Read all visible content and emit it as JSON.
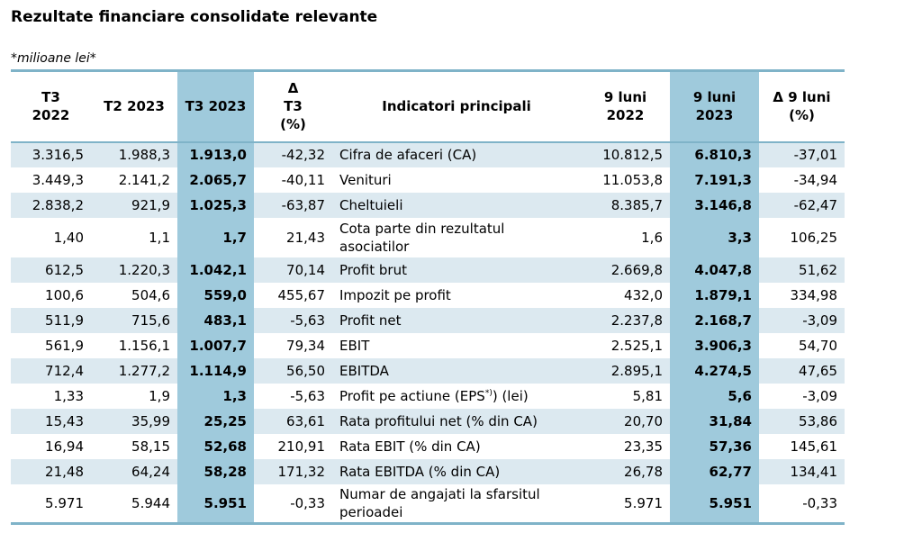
{
  "title": "Rezultate financiare consolidate relevante",
  "unit_note": "*milioane lei*",
  "table": {
    "headers": {
      "t3_2022": [
        "T3",
        "2022"
      ],
      "t2_2023": "T2 2023",
      "t3_2023": "T3 2023",
      "delta_t3": [
        "Δ",
        "T3",
        "(%)"
      ],
      "indicator": "Indicatori principali",
      "nine_2022": [
        "9 luni",
        "2022"
      ],
      "nine_2023": [
        "9 luni",
        "2023"
      ],
      "delta_nine": [
        "Δ 9 luni",
        "(%)"
      ]
    },
    "colors": {
      "header_rule": "#7fb3c8",
      "row_shade": "#dce9f0",
      "highlight_column": "#9fcadc"
    },
    "rows": [
      {
        "t3_2022": "3.316,5",
        "t2_2023": "1.988,3",
        "t3_2023": "1.913,0",
        "delta_t3": "-42,32",
        "indicator": "Cifra de afaceri (CA)",
        "nine_2022": "10.812,5",
        "nine_2023": "6.810,3",
        "delta_nine": "-37,01"
      },
      {
        "t3_2022": "3.449,3",
        "t2_2023": "2.141,2",
        "t3_2023": "2.065,7",
        "delta_t3": "-40,11",
        "indicator": "Venituri",
        "nine_2022": "11.053,8",
        "nine_2023": "7.191,3",
        "delta_nine": "-34,94"
      },
      {
        "t3_2022": "2.838,2",
        "t2_2023": "921,9",
        "t3_2023": "1.025,3",
        "delta_t3": "-63,87",
        "indicator": "Cheltuieli",
        "nine_2022": "8.385,7",
        "nine_2023": "3.146,8",
        "delta_nine": "-62,47"
      },
      {
        "t3_2022": "1,40",
        "t2_2023": "1,1",
        "t3_2023": "1,7",
        "delta_t3": "21,43",
        "indicator": "Cota parte din rezultatul asociatilor",
        "nine_2022": "1,6",
        "nine_2023": "3,3",
        "delta_nine": "106,25"
      },
      {
        "t3_2022": "612,5",
        "t2_2023": "1.220,3",
        "t3_2023": "1.042,1",
        "delta_t3": "70,14",
        "indicator": "Profit brut",
        "nine_2022": "2.669,8",
        "nine_2023": "4.047,8",
        "delta_nine": "51,62"
      },
      {
        "t3_2022": "100,6",
        "t2_2023": "504,6",
        "t3_2023": "559,0",
        "delta_t3": "455,67",
        "indicator": "Impozit pe profit",
        "nine_2022": "432,0",
        "nine_2023": "1.879,1",
        "delta_nine": "334,98"
      },
      {
        "t3_2022": "511,9",
        "t2_2023": "715,6",
        "t3_2023": "483,1",
        "delta_t3": "-5,63",
        "indicator": "Profit net",
        "nine_2022": "2.237,8",
        "nine_2023": "2.168,7",
        "delta_nine": "-3,09"
      },
      {
        "t3_2022": "561,9",
        "t2_2023": "1.156,1",
        "t3_2023": "1.007,7",
        "delta_t3": "79,34",
        "indicator": "EBIT",
        "nine_2022": "2.525,1",
        "nine_2023": "3.906,3",
        "delta_nine": "54,70"
      },
      {
        "t3_2022": "712,4",
        "t2_2023": "1.277,2",
        "t3_2023": "1.114,9",
        "delta_t3": "56,50",
        "indicator": "EBITDA",
        "nine_2022": "2.895,1",
        "nine_2023": "4.274,5",
        "delta_nine": "47,65"
      },
      {
        "t3_2022": "1,33",
        "t2_2023": "1,9",
        "t3_2023": "1,3",
        "delta_t3": "-5,63",
        "indicator": "Profit pe actiune (EPS",
        "indicator_sup": "*)",
        "indicator_tail": ") (lei)",
        "nine_2022": "5,81",
        "nine_2023": "5,6",
        "delta_nine": "-3,09"
      },
      {
        "t3_2022": "15,43",
        "t2_2023": "35,99",
        "t3_2023": "25,25",
        "delta_t3": "63,61",
        "indicator": "Rata profitului net (% din CA)",
        "nine_2022": "20,70",
        "nine_2023": "31,84",
        "delta_nine": "53,86"
      },
      {
        "t3_2022": "16,94",
        "t2_2023": "58,15",
        "t3_2023": "52,68",
        "delta_t3": "210,91",
        "indicator": "Rata EBIT (% din CA)",
        "nine_2022": "23,35",
        "nine_2023": "57,36",
        "delta_nine": "145,61"
      },
      {
        "t3_2022": "21,48",
        "t2_2023": "64,24",
        "t3_2023": "58,28",
        "delta_t3": "171,32",
        "indicator": "Rata EBITDA (% din CA)",
        "nine_2022": "26,78",
        "nine_2023": "62,77",
        "delta_nine": "134,41"
      },
      {
        "t3_2022": "5.971",
        "t2_2023": "5.944",
        "t3_2023": "5.951",
        "delta_t3": "-0,33",
        "indicator": "Numar de angajati la sfarsitul perioadei",
        "nine_2022": "5.971",
        "nine_2023": "5.951",
        "delta_nine": "-0,33"
      }
    ]
  }
}
